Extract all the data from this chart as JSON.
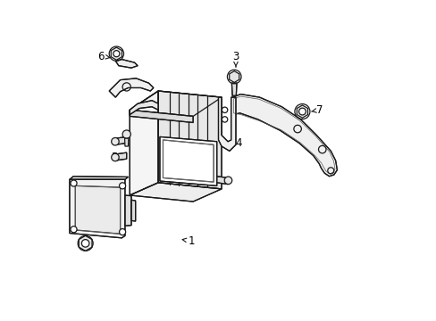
{
  "background_color": "#ffffff",
  "line_color": "#1a1a1a",
  "label_color": "#000000",
  "fig_width": 4.89,
  "fig_height": 3.6,
  "dpi": 100,
  "lw": 0.9,
  "part_labels": {
    "1": [
      0.415,
      0.245,
      0.375,
      0.252
    ],
    "2": [
      0.065,
      0.235,
      0.093,
      0.241
    ],
    "3": [
      0.555,
      0.83,
      0.555,
      0.788
    ],
    "4": [
      0.565,
      0.555,
      0.53,
      0.565
    ],
    "5": [
      0.17,
      0.51,
      0.205,
      0.51
    ],
    "6": [
      0.13,
      0.83,
      0.16,
      0.825
    ],
    "7": [
      0.82,
      0.66,
      0.793,
      0.655
    ]
  }
}
